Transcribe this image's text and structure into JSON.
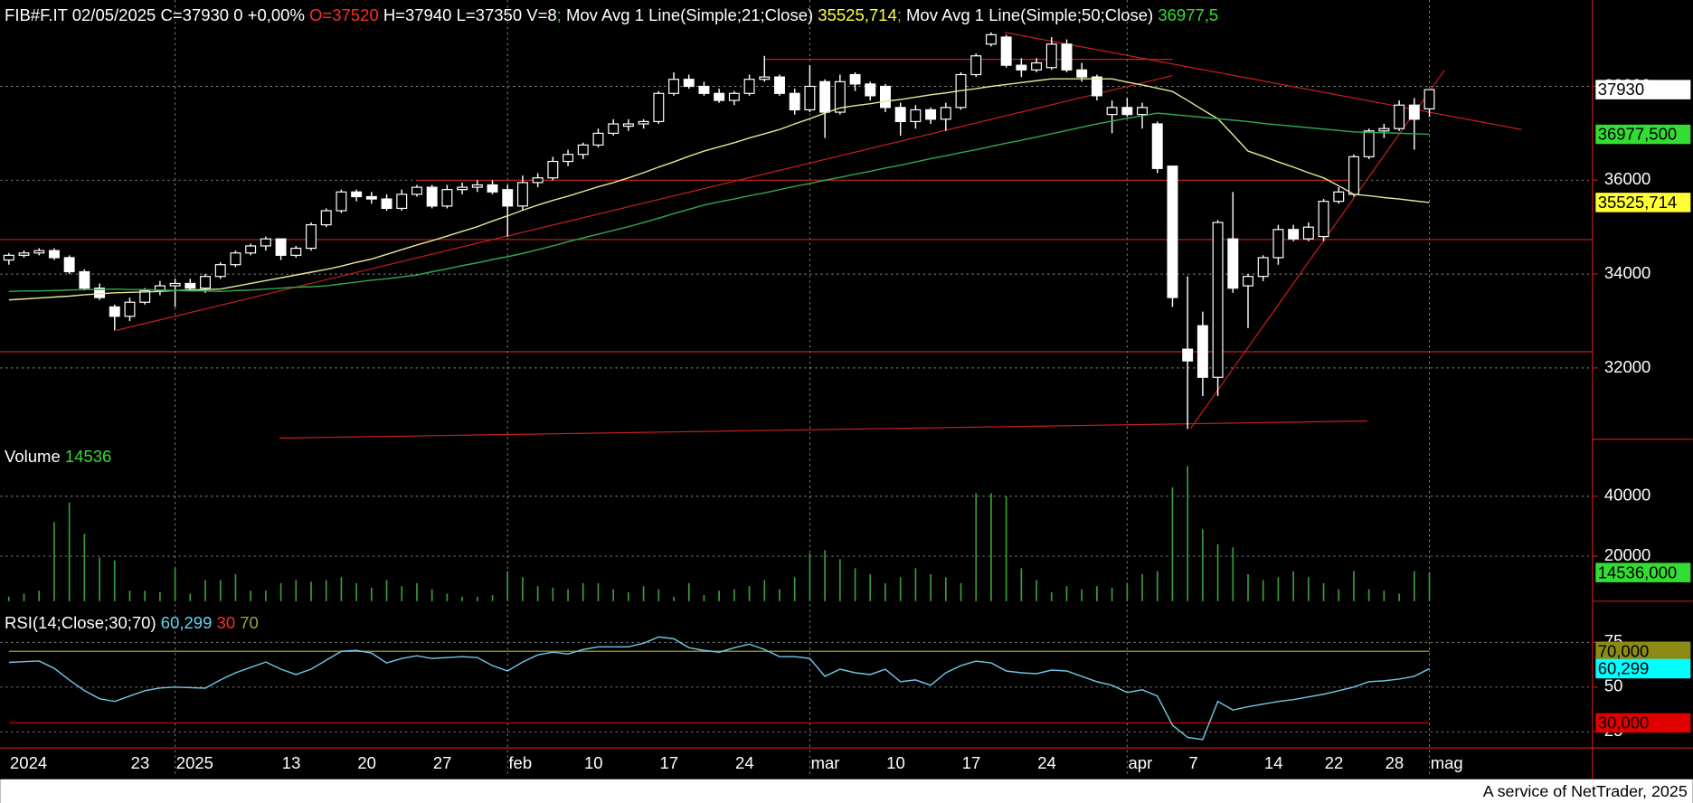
{
  "chart_data": [
    {
      "type": "candlestick",
      "title_parts": [
        {
          "text": "FIB#F.IT 02/05/2025 C=37930 0 +0,00% ",
          "color": "#ffffff"
        },
        {
          "text": "O=37520",
          "color": "#ff2a2a"
        },
        {
          "text": " H=37940 L=37350 V=8",
          "color": "#ffffff"
        },
        {
          "text": "; ",
          "color": "#33dd33"
        },
        {
          "text": "Mov Avg 1 Line(Simple;21;Close) ",
          "color": "#ffffff"
        },
        {
          "text": "35525,714",
          "color": "#ffff44"
        },
        {
          "text": "; ",
          "color": "#33dd33"
        },
        {
          "text": "Mov Avg 1 Line(Simple;50;Close) ",
          "color": "#ffffff"
        },
        {
          "text": "36977,5",
          "color": "#33dd33"
        }
      ],
      "categories": [
        "2024",
        null,
        null,
        null,
        null,
        null,
        null,
        null,
        "23",
        null,
        null,
        "2025",
        null,
        null,
        null,
        null,
        null,
        null,
        "13",
        null,
        null,
        null,
        null,
        "20",
        null,
        null,
        null,
        null,
        "27",
        null,
        null,
        null,
        null,
        "feb",
        null,
        null,
        null,
        null,
        "10",
        null,
        null,
        null,
        null,
        "17",
        null,
        null,
        null,
        null,
        "24",
        null,
        null,
        null,
        null,
        "mar",
        null,
        null,
        null,
        null,
        "10",
        null,
        null,
        null,
        null,
        "17",
        null,
        null,
        null,
        null,
        "24",
        null,
        null,
        null,
        null,
        null,
        "apr",
        null,
        null,
        null,
        "7",
        null,
        null,
        null,
        null,
        "14",
        null,
        null,
        null,
        "22",
        null,
        null,
        null,
        "28",
        null,
        null,
        "mag"
      ],
      "open": [
        34300,
        34400,
        34450,
        34500,
        34350,
        34050,
        33700,
        33300,
        33100,
        33400,
        33650,
        33750,
        33800,
        33700,
        33950,
        34200,
        34450,
        34600,
        34750,
        34400,
        34550,
        35050,
        35350,
        35750,
        35650,
        35600,
        35400,
        35700,
        35850,
        35450,
        35800,
        35850,
        35900,
        35800,
        35450,
        35950,
        36050,
        36400,
        36550,
        36750,
        37000,
        37150,
        37200,
        37250,
        37850,
        38150,
        38000,
        37850,
        37700,
        37850,
        38150,
        38200,
        37850,
        37500,
        38100,
        37450,
        38250,
        38050,
        38000,
        37550,
        37250,
        37500,
        37300,
        37550,
        38250,
        38900,
        39050,
        38450,
        38350,
        38400,
        38900,
        38350,
        38200,
        37400,
        37550,
        37400,
        37200,
        36300,
        32400,
        32900,
        31800,
        34750,
        33750,
        33950,
        34350,
        34950,
        34750,
        34800,
        35550,
        35700,
        36500,
        37050,
        37100,
        37600,
        37520
      ],
      "high": [
        34450,
        34500,
        34550,
        34550,
        34400,
        34100,
        33800,
        33350,
        33500,
        33700,
        33850,
        33900,
        33900,
        34000,
        34250,
        34500,
        34650,
        34800,
        34750,
        34600,
        35100,
        35400,
        35800,
        35800,
        35750,
        35700,
        35800,
        35900,
        35900,
        35900,
        35950,
        36000,
        36000,
        35900,
        36100,
        36150,
        36500,
        36650,
        36800,
        37100,
        37300,
        37300,
        37300,
        37900,
        38300,
        38250,
        38100,
        37950,
        37900,
        38250,
        38650,
        38250,
        37950,
        38450,
        38150,
        38250,
        38300,
        38100,
        38050,
        37650,
        37600,
        37550,
        37650,
        38300,
        38700,
        39150,
        39100,
        38600,
        38600,
        39050,
        39000,
        38500,
        38250,
        37700,
        37750,
        37650,
        37250,
        36300,
        33950,
        33200,
        35150,
        35750,
        34000,
        34400,
        35050,
        35050,
        35100,
        35600,
        35850,
        36550,
        37100,
        37200,
        37700,
        37750,
        37940
      ],
      "low": [
        34200,
        34350,
        34400,
        34300,
        34000,
        33650,
        33450,
        32800,
        33000,
        33350,
        33550,
        33300,
        33650,
        33600,
        33900,
        34150,
        34400,
        34500,
        34300,
        34350,
        34500,
        35000,
        35300,
        35550,
        35500,
        35350,
        35350,
        35650,
        35400,
        35400,
        35700,
        35750,
        35700,
        34800,
        35350,
        35850,
        36000,
        36300,
        36450,
        36700,
        36950,
        37050,
        37100,
        37200,
        37800,
        37950,
        37800,
        37650,
        37600,
        37800,
        38100,
        37800,
        37400,
        37450,
        36900,
        37400,
        37900,
        37700,
        37450,
        36950,
        37100,
        37200,
        37050,
        37500,
        38200,
        38850,
        38400,
        38200,
        38300,
        38350,
        38300,
        38100,
        37700,
        37000,
        37350,
        37100,
        36150,
        33300,
        30700,
        31400,
        31400,
        33600,
        32850,
        33850,
        34200,
        34700,
        34700,
        34700,
        35500,
        35650,
        36450,
        36900,
        37050,
        36650,
        37350
      ],
      "close": [
        34400,
        34450,
        34500,
        34350,
        34050,
        33700,
        33500,
        33100,
        33400,
        33650,
        33750,
        33800,
        33700,
        33950,
        34200,
        34450,
        34600,
        34750,
        34400,
        34550,
        35050,
        35350,
        35750,
        35650,
        35600,
        35400,
        35700,
        35850,
        35450,
        35800,
        35850,
        35900,
        35750,
        35450,
        35950,
        36050,
        36400,
        36550,
        36750,
        37000,
        37200,
        37200,
        37250,
        37850,
        38150,
        38000,
        37850,
        37700,
        37850,
        38150,
        38200,
        37850,
        37500,
        38000,
        37450,
        38100,
        38050,
        37800,
        37550,
        37250,
        37500,
        37300,
        37550,
        38250,
        38650,
        39100,
        38450,
        38350,
        38500,
        38900,
        38350,
        38200,
        37800,
        37550,
        37400,
        37550,
        36250,
        33500,
        32150,
        31800,
        35100,
        33700,
        33950,
        34350,
        34950,
        34750,
        35000,
        35550,
        35750,
        36500,
        37050,
        37100,
        37600,
        37300,
        37930
      ],
      "candle_color": "#ffffff",
      "series": [
        {
          "color": "#e6e69a",
          "values": [
            33450,
            33470,
            33490,
            33510,
            33530,
            33560,
            33580,
            33600,
            33610,
            33620,
            33630,
            33650,
            33660,
            33670,
            33680,
            33740,
            33800,
            33860,
            33920,
            33980,
            34040,
            34100,
            34170,
            34250,
            34320,
            34420,
            34520,
            34620,
            34710,
            34810,
            34910,
            35010,
            35130,
            35240,
            35360,
            35470,
            35570,
            35660,
            35760,
            35860,
            35950,
            36050,
            36160,
            36280,
            36390,
            36510,
            36620,
            36710,
            36800,
            36900,
            36990,
            37080,
            37200,
            37310,
            37430,
            37540,
            37590,
            37630,
            37680,
            37720,
            37770,
            37820,
            37860,
            37910,
            37950,
            38000,
            38040,
            38080,
            38120,
            38160,
            38160,
            38160,
            38160,
            38160,
            38090,
            38030,
            37960,
            37890,
            37700,
            37500,
            37310,
            36970,
            36620,
            36510,
            36390,
            36280,
            36160,
            36050,
            35880,
            35700,
            35670,
            35630,
            35600,
            35560,
            35525.714
          ]
        },
        {
          "color": "#2fa84f",
          "values": [
            33630,
            33640,
            33640,
            33650,
            33660,
            33670,
            33670,
            33680,
            33670,
            33670,
            33660,
            33650,
            33640,
            33640,
            33630,
            33650,
            33660,
            33680,
            33700,
            33720,
            33730,
            33750,
            33790,
            33830,
            33870,
            33900,
            33940,
            33980,
            34050,
            34110,
            34180,
            34240,
            34310,
            34370,
            34440,
            34520,
            34600,
            34690,
            34770,
            34850,
            34930,
            35010,
            35100,
            35190,
            35290,
            35380,
            35470,
            35540,
            35600,
            35670,
            35730,
            35800,
            35870,
            35930,
            36000,
            36060,
            36130,
            36190,
            36260,
            36320,
            36390,
            36460,
            36520,
            36590,
            36650,
            36720,
            36790,
            36850,
            36920,
            36990,
            37060,
            37130,
            37200,
            37260,
            37320,
            37370,
            37430,
            37400,
            37370,
            37340,
            37310,
            37280,
            37250,
            37210,
            37180,
            37150,
            37120,
            37090,
            37060,
            37030,
            37020,
            37010,
            37000,
            36990,
            36977.5
          ]
        }
      ],
      "ylim": [
        30480,
        39840
      ],
      "yticks": [
        32000,
        34000,
        36000,
        38000
      ],
      "grid": true,
      "markers": [
        {
          "value": 37930,
          "label": "37930",
          "color": "#ffffff"
        },
        {
          "value": 36977.5,
          "label": "36977,500",
          "color": "#33dd33"
        },
        {
          "value": 35525.714,
          "label": "35525,714",
          "color": "#ffff33"
        }
      ],
      "trendline_color": "#c8201e",
      "trendlines": [
        {
          "x": [
            -1,
            105
          ],
          "y": [
            34735,
            34735
          ]
        },
        {
          "x": [
            -1,
            105
          ],
          "y": [
            32345,
            32345
          ]
        },
        {
          "x": [
            27,
            89
          ],
          "y": [
            36000,
            36000
          ]
        },
        {
          "x": [
            50,
            77
          ],
          "y": [
            38575,
            38575
          ]
        },
        {
          "x": [
            7.1,
            77
          ],
          "y": [
            32800,
            38230
          ]
        },
        {
          "x": [
            65.9,
            100.1
          ],
          "y": [
            39150,
            37080
          ]
        },
        {
          "x": [
            78.2,
            95
          ],
          "y": [
            30710,
            38345
          ]
        },
        {
          "x": [
            17.9,
            89.9
          ],
          "y": [
            30505,
            30870
          ]
        }
      ]
    },
    {
      "type": "bar",
      "title_parts": [
        {
          "text": "Volume ",
          "color": "#ffffff"
        },
        {
          "text": "14536",
          "color": "#33dd33"
        }
      ],
      "color": "#3c9c3c",
      "values": [
        6500,
        7500,
        8500,
        31400,
        37900,
        27500,
        19600,
        18600,
        8500,
        8500,
        8000,
        16000,
        7500,
        12000,
        12000,
        14000,
        8500,
        8500,
        11000,
        12000,
        11500,
        12000,
        13000,
        11000,
        9500,
        12000,
        10000,
        11000,
        9000,
        7500,
        6500,
        6500,
        7000,
        15000,
        13000,
        10000,
        9500,
        9000,
        11000,
        11000,
        9000,
        8000,
        10000,
        9000,
        6500,
        11000,
        7000,
        8500,
        9000,
        10000,
        12000,
        9000,
        13000,
        21000,
        22000,
        19000,
        16000,
        14000,
        11000,
        13000,
        16000,
        14000,
        13000,
        11000,
        41000,
        41000,
        40000,
        16000,
        12000,
        8000,
        10000,
        9000,
        10000,
        9500,
        11000,
        14000,
        15000,
        43000,
        50000,
        29000,
        24000,
        23000,
        14000,
        12000,
        13000,
        15000,
        13000,
        11000,
        9000,
        15000,
        9000,
        8500,
        7500,
        15000,
        14536
      ],
      "ylim": [
        5000,
        59000
      ],
      "yticks": [
        20000,
        40000
      ],
      "grid": true,
      "markers": [
        {
          "value": 14536,
          "label": "14536,000",
          "color": "#33dd33"
        }
      ]
    },
    {
      "type": "line",
      "title_parts": [
        {
          "text": "RSI(14;Close;30;70) ",
          "color": "#ffffff"
        },
        {
          "text": "60,299 ",
          "color": "#5fd8f0"
        },
        {
          "text": "30 ",
          "color": "#ff2a2a"
        },
        {
          "text": "70",
          "color": "#a0a040"
        }
      ],
      "series": [
        {
          "color": "#6ec6e6",
          "values": [
            63.8,
            64.2,
            64.6,
            60.5,
            54,
            48,
            43.5,
            42,
            45,
            48,
            49.5,
            50,
            49.7,
            49.4,
            54,
            58,
            61,
            64,
            60,
            57,
            60,
            65,
            70,
            70.5,
            69,
            63.5,
            66,
            67.5,
            66,
            66.5,
            67,
            66.5,
            62,
            59,
            64,
            68,
            69.5,
            68.5,
            71,
            72.5,
            72.5,
            72.5,
            74.5,
            78,
            77,
            72,
            70.5,
            69.5,
            72,
            74,
            71,
            67,
            67,
            66,
            56,
            60,
            58,
            57,
            60,
            53,
            54,
            51,
            58,
            62,
            64.5,
            63.5,
            59,
            58,
            57.5,
            59.5,
            59,
            56,
            53,
            51,
            47,
            48.5,
            45,
            28.7,
            21.9,
            20.7,
            42,
            37.2,
            39,
            40.5,
            42,
            43,
            44.5,
            46,
            48,
            50,
            53,
            53.5,
            54.5,
            56,
            60.299
          ]
        }
      ],
      "levels": [
        {
          "value": 70,
          "color": "#8b8b16"
        },
        {
          "value": 30,
          "color": "#c00000"
        }
      ],
      "ylim": [
        16,
        98
      ],
      "yticks": [
        25,
        50,
        75
      ],
      "grid": true,
      "markers": [
        {
          "value": 70,
          "label": "70,000",
          "color": "#8b8b16"
        },
        {
          "value": 60.299,
          "label": "60,299",
          "color": "#00ffff"
        },
        {
          "value": 30,
          "label": "30,000",
          "color": "#e00000"
        }
      ]
    }
  ],
  "footer": "A service of NetTrader, 2025"
}
